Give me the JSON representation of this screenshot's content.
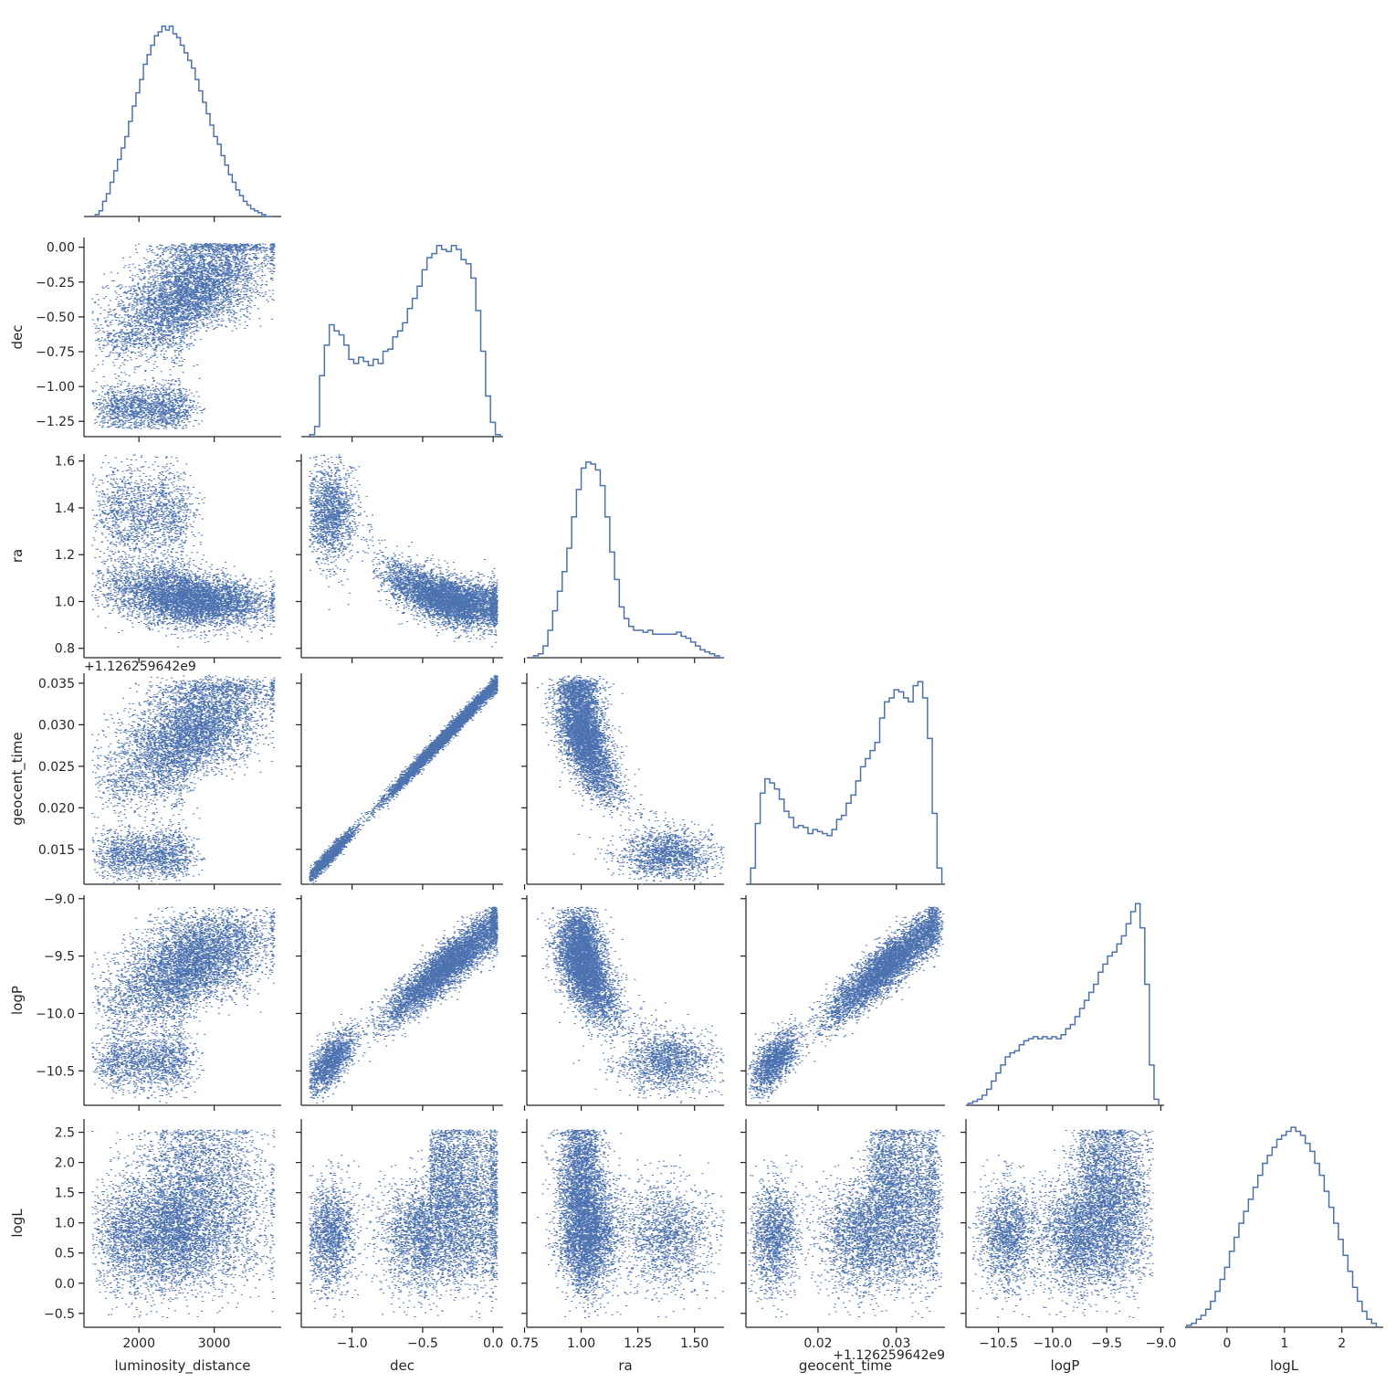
{
  "colors": {
    "series": "#4c72b0",
    "axis": "#262626",
    "background": "#ffffff"
  },
  "chart_data": {
    "type": "scatter",
    "layout": "corner-pairplot",
    "variables": [
      "luminosity_distance",
      "dec",
      "ra",
      "geocent_time",
      "logP",
      "logL"
    ],
    "axis_labels": {
      "luminosity_distance": "luminosity_distance",
      "dec": "dec",
      "ra": "ra",
      "geocent_time": "geocent_time",
      "logP": "logP",
      "logL": "logL"
    },
    "offset_text": {
      "geocent_time": "+1.126259642e9"
    },
    "ranges": {
      "luminosity_distance": [
        1270,
        3890
      ],
      "dec": [
        -1.36,
        0.07
      ],
      "ra": [
        0.76,
        1.63
      ],
      "geocent_time": [
        0.0108,
        0.0362
      ],
      "logP": [
        -10.8,
        -8.97
      ],
      "logL": [
        -0.73,
        2.72
      ]
    },
    "ticks": {
      "luminosity_distance": [
        {
          "v": 2000,
          "label": "2000"
        },
        {
          "v": 3000,
          "label": "3000"
        }
      ],
      "dec": [
        {
          "v": -1.25,
          "label": "−1.25"
        },
        {
          "v": -1.0,
          "label": "−1.00"
        },
        {
          "v": -0.75,
          "label": "−0.75"
        },
        {
          "v": -0.5,
          "label": "−0.50"
        },
        {
          "v": -0.25,
          "label": "−0.25"
        },
        {
          "v": 0.0,
          "label": "0.00"
        }
      ],
      "dec_x": [
        {
          "v": -1.0,
          "label": "−1.0"
        },
        {
          "v": -0.5,
          "label": "−0.5"
        },
        {
          "v": 0.0,
          "label": "0.0"
        }
      ],
      "ra": [
        {
          "v": 0.8,
          "label": "0.8"
        },
        {
          "v": 1.0,
          "label": "1.0"
        },
        {
          "v": 1.2,
          "label": "1.2"
        },
        {
          "v": 1.4,
          "label": "1.4"
        },
        {
          "v": 1.6,
          "label": "1.6"
        }
      ],
      "ra_x": [
        {
          "v": 0.75,
          "label": "0.75"
        },
        {
          "v": 1.0,
          "label": "1.00"
        },
        {
          "v": 1.25,
          "label": "1.25"
        },
        {
          "v": 1.5,
          "label": "1.50"
        }
      ],
      "geocent_time": [
        {
          "v": 0.015,
          "label": "0.015"
        },
        {
          "v": 0.02,
          "label": "0.020"
        },
        {
          "v": 0.025,
          "label": "0.025"
        },
        {
          "v": 0.03,
          "label": "0.030"
        },
        {
          "v": 0.035,
          "label": "0.035"
        }
      ],
      "geocent_time_x": [
        {
          "v": 0.02,
          "label": "0.02"
        },
        {
          "v": 0.03,
          "label": "0.03"
        }
      ],
      "logP": [
        {
          "v": -10.5,
          "label": "−10.5"
        },
        {
          "v": -10.0,
          "label": "−10.0"
        },
        {
          "v": -9.5,
          "label": "−9.5"
        },
        {
          "v": -9.0,
          "label": "−9.0"
        }
      ],
      "logL": [
        {
          "v": -0.5,
          "label": "−0.5"
        },
        {
          "v": 0.0,
          "label": "0.0"
        },
        {
          "v": 0.5,
          "label": "0.5"
        },
        {
          "v": 1.0,
          "label": "1.0"
        },
        {
          "v": 1.5,
          "label": "1.5"
        },
        {
          "v": 2.0,
          "label": "2.0"
        },
        {
          "v": 2.5,
          "label": "2.5"
        }
      ],
      "logL_x": [
        {
          "v": 0,
          "label": "0"
        },
        {
          "v": 1,
          "label": "1"
        },
        {
          "v": 2,
          "label": "2"
        }
      ]
    },
    "histograms": {
      "luminosity_distance": {
        "bins": [
          1420,
          3780
        ],
        "counts": [
          1,
          3,
          8,
          12,
          18,
          24,
          30,
          36,
          42,
          50,
          58,
          65,
          72,
          80,
          85,
          90,
          95,
          97,
          100,
          98,
          100,
          96,
          94,
          90,
          86,
          82,
          78,
          72,
          66,
          60,
          54,
          48,
          42,
          38,
          32,
          27,
          22,
          18,
          14,
          11,
          8,
          6,
          4,
          3,
          2,
          1,
          0,
          0
        ]
      },
      "dec": {
        "bins": [
          -1.3,
          0.05
        ],
        "counts": [
          1,
          5,
          30,
          45,
          55,
          52,
          50,
          45,
          38,
          36,
          39,
          37,
          35,
          38,
          36,
          42,
          43,
          49,
          52,
          56,
          63,
          68,
          74,
          82,
          88,
          90,
          94,
          92,
          91,
          94,
          92,
          87,
          85,
          78,
          62,
          42,
          20,
          7,
          1
        ]
      },
      "ra": {
        "bins": [
          0.79,
          1.63
        ],
        "counts": [
          1,
          2,
          6,
          14,
          24,
          34,
          44,
          56,
          72,
          86,
          97,
          100,
          99,
          96,
          88,
          72,
          54,
          40,
          26,
          20,
          16,
          14,
          14,
          13,
          14,
          12,
          12,
          12,
          12,
          12,
          13,
          11,
          10,
          8,
          6,
          4,
          3,
          2,
          1,
          0
        ]
      },
      "geocent_time": {
        "bins": [
          0.0114,
          0.0358
        ],
        "counts": [
          8,
          30,
          45,
          52,
          50,
          47,
          42,
          36,
          33,
          28,
          29,
          28,
          25,
          27,
          26,
          25,
          24,
          27,
          32,
          34,
          40,
          44,
          51,
          58,
          62,
          66,
          70,
          82,
          90,
          92,
          96,
          95,
          92,
          90,
          98,
          100,
          92,
          72,
          35,
          8
        ]
      },
      "logP": {
        "bins": [
          -10.78,
          -9.02
        ],
        "counts": [
          1,
          2,
          3,
          5,
          8,
          12,
          16,
          20,
          24,
          26,
          27,
          30,
          32,
          33,
          34,
          33,
          34,
          33,
          34,
          33,
          35,
          38,
          40,
          44,
          48,
          52,
          56,
          60,
          66,
          70,
          74,
          76,
          80,
          84,
          90,
          96,
          100,
          88,
          60,
          20,
          3
        ]
      },
      "logL": {
        "bins": [
          -0.7,
          2.6
        ],
        "counts": [
          1,
          2,
          4,
          6,
          9,
          13,
          18,
          24,
          30,
          38,
          45,
          52,
          58,
          64,
          70,
          76,
          82,
          86,
          90,
          94,
          96,
          98,
          100,
          98,
          96,
          92,
          88,
          82,
          76,
          68,
          60,
          52,
          44,
          36,
          28,
          20,
          13,
          8,
          4,
          2
        ]
      }
    },
    "scatter_panels": [
      {
        "x": "luminosity_distance",
        "y": "dec"
      },
      {
        "x": "luminosity_distance",
        "y": "ra"
      },
      {
        "x": "dec",
        "y": "ra"
      },
      {
        "x": "luminosity_distance",
        "y": "geocent_time"
      },
      {
        "x": "dec",
        "y": "geocent_time"
      },
      {
        "x": "ra",
        "y": "geocent_time"
      },
      {
        "x": "luminosity_distance",
        "y": "logP"
      },
      {
        "x": "dec",
        "y": "logP"
      },
      {
        "x": "ra",
        "y": "logP"
      },
      {
        "x": "geocent_time",
        "y": "logP"
      },
      {
        "x": "luminosity_distance",
        "y": "logL"
      },
      {
        "x": "dec",
        "y": "logL"
      },
      {
        "x": "ra",
        "y": "logL"
      },
      {
        "x": "geocent_time",
        "y": "logL"
      },
      {
        "x": "logP",
        "y": "logL"
      }
    ],
    "grid": false,
    "legend": "none"
  }
}
